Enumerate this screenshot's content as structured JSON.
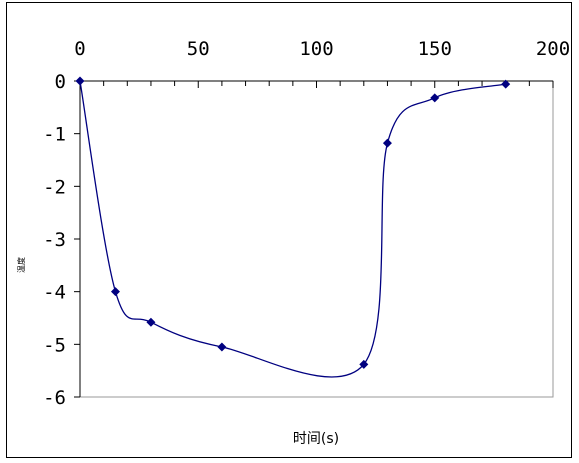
{
  "chart_data": {
    "type": "line",
    "title": "",
    "xlabel": "时间(s)",
    "ylabel": "温度",
    "xlim": [
      0,
      200
    ],
    "ylim": [
      -6,
      0
    ],
    "x_axis_position": "top",
    "x_ticks": [
      0,
      50,
      100,
      150,
      200
    ],
    "y_ticks": [
      0,
      -1,
      -2,
      -3,
      -4,
      -5,
      -6
    ],
    "x_minor_step": 10,
    "grid": false,
    "legend": "none",
    "series": [
      {
        "color": "#000080",
        "marker": "diamond",
        "smooth": true,
        "x": [
          0,
          15,
          30,
          60,
          120,
          130,
          150,
          180
        ],
        "y": [
          0,
          -4.0,
          -4.58,
          -5.05,
          -5.38,
          -1.18,
          -0.32,
          -0.06
        ]
      }
    ]
  }
}
